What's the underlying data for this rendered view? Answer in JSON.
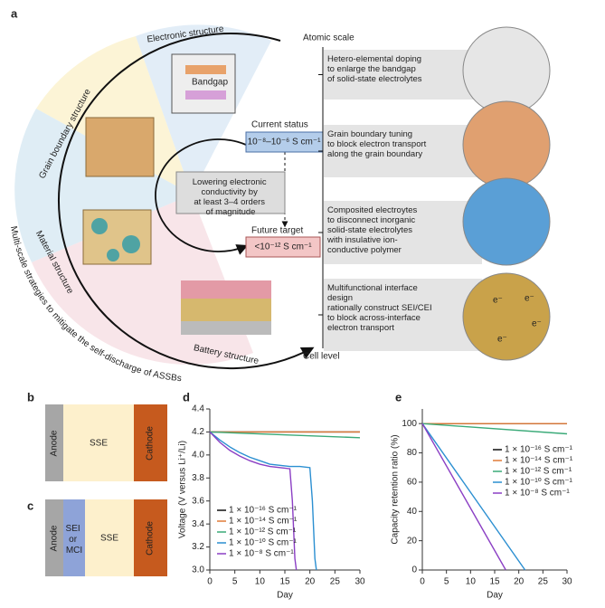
{
  "panel_a": {
    "label": "a",
    "sectors": [
      "Electronic structure",
      "Grain boundary structure",
      "Material structure",
      "Battery structure"
    ],
    "strategy": "Multi-scale strategies to mitigate the self-discharge of ASSBs",
    "bandgap": "Bandgap",
    "current_status": {
      "title": "Current status",
      "value": "10⁻⁸–10⁻⁶ S cm⁻¹"
    },
    "lowering": [
      "Lowering electronic",
      "conductivity by",
      "at least 3–4 orders",
      "of magnitude"
    ],
    "future_target": {
      "title": "Future target",
      "value": "<10⁻¹² S cm⁻¹"
    },
    "atomic_scale": "Atomic scale",
    "cell_level": "Cell level",
    "strategies": [
      [
        "Hetero-elemental doping",
        "to enlarge the bandgap",
        "of solid-state electrolytes"
      ],
      [
        "Grain boundary tuning",
        "to block electron transport",
        "along the grain boundary"
      ],
      [
        "Composited electroytes",
        "to disconnect inorganic",
        "solid-state electrolytes",
        "with insulative ion-",
        "conductive polymer"
      ],
      [
        "Multifunctional interface",
        "design",
        "rationally construct SEI/CEI",
        "to block across-interface",
        "electron transport"
      ]
    ],
    "electron_labels": [
      "e⁻",
      "e⁻",
      "e⁻",
      "e⁻"
    ]
  },
  "panel_b": {
    "label": "b",
    "layers": [
      "Anode",
      "SSE",
      "Cathode"
    ]
  },
  "panel_c": {
    "label": "c",
    "layers": [
      "Anode",
      [
        "SEI",
        "or",
        "MCI"
      ],
      "SSE",
      "Cathode"
    ]
  },
  "chart_data": [
    {
      "type": "line",
      "panel_label": "d",
      "x_label": "Day",
      "y_label": "Voltage (V versus Li⁺/Li)",
      "xlim": [
        0,
        30
      ],
      "xticks": [
        0,
        5,
        10,
        15,
        20,
        25,
        30
      ],
      "ylim": [
        3.0,
        4.4
      ],
      "yticks": [
        {
          "value": 3.0,
          "label": "3.0"
        },
        3.2,
        3.4,
        3.6,
        3.8,
        {
          "value": 4.0,
          "label": "4.0"
        },
        4.2,
        4.4
      ],
      "legend": "lower left",
      "series": [
        {
          "name": "1 × 10⁻¹⁶ S cm⁻¹",
          "color": "#111111",
          "x": [
            0,
            30
          ],
          "values": [
            4.2,
            4.2
          ]
        },
        {
          "name": "1 × 10⁻¹⁴ S cm⁻¹",
          "color": "#e07b39",
          "x": [
            0,
            30
          ],
          "values": [
            4.2,
            4.2
          ]
        },
        {
          "name": "1 × 10⁻¹² S cm⁻¹",
          "color": "#3aaa78",
          "x": [
            0,
            30
          ],
          "values": [
            4.2,
            4.15
          ]
        },
        {
          "name": "1 × 10⁻¹⁰ S cm⁻¹",
          "color": "#2b8fd1",
          "x": [
            0,
            2,
            4,
            6,
            8,
            10,
            12,
            14,
            16,
            18,
            20,
            20.5,
            21,
            21.3
          ],
          "values": [
            4.2,
            4.13,
            4.07,
            4.02,
            3.98,
            3.95,
            3.92,
            3.91,
            3.9,
            3.9,
            3.89,
            3.6,
            3.1,
            3.0
          ]
        },
        {
          "name": "1 × 10⁻⁸ S cm⁻¹",
          "color": "#8b3fc4",
          "x": [
            0,
            2,
            4,
            6,
            8,
            10,
            12,
            14,
            16,
            16.5,
            17,
            17.3
          ],
          "values": [
            4.2,
            4.11,
            4.04,
            3.99,
            3.95,
            3.92,
            3.9,
            3.89,
            3.88,
            3.6,
            3.1,
            3.0
          ]
        }
      ]
    },
    {
      "type": "line",
      "panel_label": "e",
      "x_label": "Day",
      "y_label": "Capacity retention ratio (%)",
      "xlim": [
        0,
        30
      ],
      "xticks": [
        0,
        5,
        10,
        15,
        20,
        25,
        30
      ],
      "ylim": [
        0,
        110
      ],
      "yticks": [
        0,
        20,
        40,
        60,
        80,
        100
      ],
      "legend": "upper right",
      "series": [
        {
          "name": "1 × 10⁻¹⁶ S cm⁻¹",
          "color": "#111111",
          "x": [
            0,
            30
          ],
          "values": [
            100,
            100
          ]
        },
        {
          "name": "1 × 10⁻¹⁴ S cm⁻¹",
          "color": "#e07b39",
          "x": [
            0,
            30
          ],
          "values": [
            100,
            100
          ]
        },
        {
          "name": "1 × 10⁻¹² S cm⁻¹",
          "color": "#3aaa78",
          "x": [
            0,
            30
          ],
          "values": [
            100,
            93
          ]
        },
        {
          "name": "1 × 10⁻¹⁰ S cm⁻¹",
          "color": "#2b8fd1",
          "x": [
            0,
            21.3
          ],
          "values": [
            100,
            0
          ]
        },
        {
          "name": "1 × 10⁻⁸ S cm⁻¹",
          "color": "#8b3fc4",
          "x": [
            0,
            17.3
          ],
          "values": [
            100,
            0
          ]
        }
      ]
    }
  ]
}
